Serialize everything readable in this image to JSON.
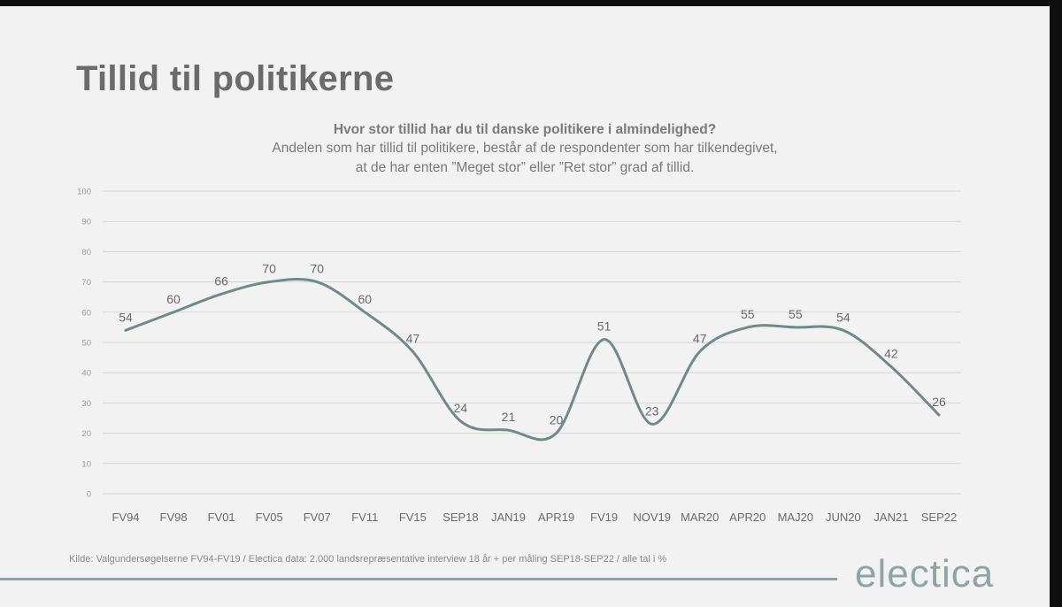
{
  "page": {
    "title": "Tillid til politikerne",
    "question": "Hvor stor tillid har du til danske politikere i almindelighed?",
    "subtitle_line1": "Andelen som har tillid til politikere, består af de respondenter som har tilkendegivet,",
    "subtitle_line2": "at de har enten ”Meget stor” eller ”Ret stor” grad af tillid.",
    "source": "Kilde: Valgundersøgelserne FV94-FV19 / Electica data: 2.000 landsrepræsentative interview 18 år + per måling SEP18-SEP22 / alle tal i %",
    "brand": "electica"
  },
  "colors": {
    "line": "#6f8a89",
    "grid": "#d6d6d6",
    "text": "#6b6b6b",
    "brand": "#8ea5a4"
  },
  "chart_data": {
    "type": "line",
    "categories": [
      "FV94",
      "FV98",
      "FV01",
      "FV05",
      "FV07",
      "FV11",
      "FV15",
      "SEP18",
      "JAN19",
      "APR19",
      "FV19",
      "NOV19",
      "MAR20",
      "APR20",
      "MAJ20",
      "JUN20",
      "JAN21",
      "SEP22"
    ],
    "series": [
      {
        "values": [
          54,
          60,
          66,
          70,
          70,
          60,
          47,
          24,
          21,
          20,
          51,
          23,
          47,
          55,
          55,
          54,
          42,
          26
        ]
      }
    ],
    "yticks": [
      0,
      10,
      20,
      30,
      40,
      50,
      60,
      70,
      80,
      90,
      100
    ],
    "ylim": [
      0,
      100
    ],
    "grid": true,
    "legend": "none",
    "data_labels": true
  }
}
